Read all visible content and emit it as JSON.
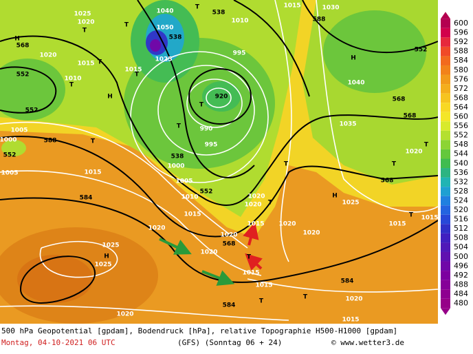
{
  "map_labels": [
    "568",
    "552",
    "552",
    "H",
    "1020",
    "1010",
    "T",
    "1015",
    "T",
    "1025",
    "T",
    "1020",
    "538",
    "T",
    "1040",
    "1050",
    "538",
    "1025",
    "1015",
    "T",
    "T",
    "H",
    "920",
    "990",
    "995",
    "1000",
    "538",
    "T",
    "T",
    "995",
    "1010",
    "1015",
    "1030",
    "588",
    "552",
    "H",
    "1040",
    "568",
    "1035",
    "568",
    "T",
    "T",
    "568",
    "1020",
    "588",
    "T",
    "1005",
    "1000",
    "552",
    "1005",
    "584",
    "1015",
    "1005",
    "1010",
    "552",
    "1015",
    "1020",
    "1025",
    "H",
    "1025",
    "568",
    "1020",
    "1020",
    "1015",
    "1020",
    "1020",
    "T",
    "1015",
    "1015",
    "584",
    "584",
    "T",
    "T",
    "1020",
    "1015",
    "T",
    "1015",
    "1020",
    "1015",
    "H",
    "1025",
    "T",
    "T",
    "1020",
    "1020"
  ],
  "colorbar": {
    "levels": [
      600,
      596,
      592,
      588,
      584,
      580,
      576,
      572,
      568,
      564,
      560,
      556,
      552,
      548,
      544,
      540,
      536,
      532,
      528,
      524,
      520,
      516,
      512,
      508,
      504,
      500,
      496,
      492,
      488,
      484,
      480
    ],
    "colors": [
      "#b40050",
      "#d2004b",
      "#e6283c",
      "#f04a28",
      "#f26a1e",
      "#f2821a",
      "#f29a1a",
      "#f4ae1c",
      "#f6c420",
      "#f8d824",
      "#f4e628",
      "#d8ea2c",
      "#b4e030",
      "#8cd434",
      "#64c83c",
      "#40bc50",
      "#2cb482",
      "#20b4b4",
      "#1ea0d2",
      "#2080e0",
      "#2464e0",
      "#2848d8",
      "#3030c8",
      "#4020c0",
      "#5018b8",
      "#6010b0",
      "#7008a8",
      "#7c00a0",
      "#860098",
      "#8e0090",
      "#960088"
    ]
  },
  "footer": {
    "description": "500 hPa Geopotential [gpdam], Bodendruck [hPa], relative Topographie H500-H1000 [gpdam]",
    "date": "Montag, 04-10-2021  06 UTC",
    "model": "(GFS)  (Sonntag 06 + 24)",
    "credit": "© www.wetter3.de"
  }
}
